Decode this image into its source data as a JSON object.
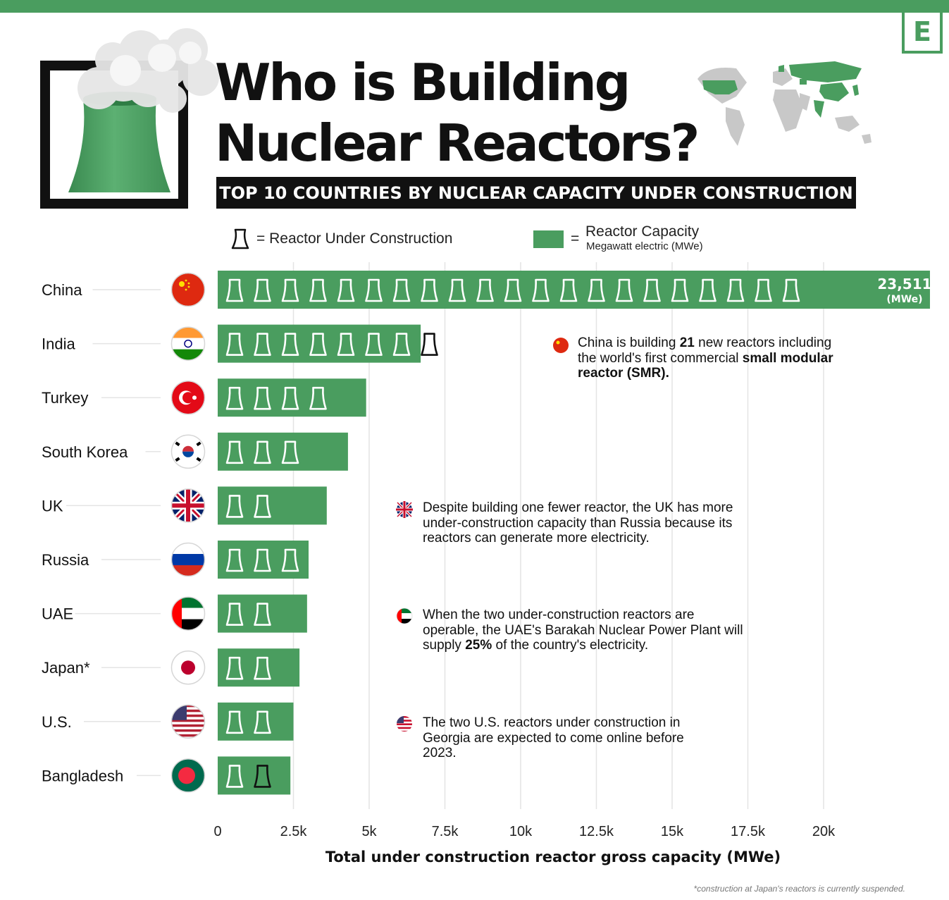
{
  "header": {
    "title_line1": "Who is Building",
    "title_line2": "Nuclear Reactors?",
    "subtitle": "TOP 10 COUNTRIES BY NUCLEAR CAPACITY UNDER CONSTRUCTION",
    "logo_letter": "E"
  },
  "legend": {
    "reactor_label": "= Reactor Under Construction",
    "capacity_eq": "=",
    "capacity_label": "Reactor Capacity",
    "capacity_sublabel": "Megawatt electric (MWe)"
  },
  "chart_data": {
    "type": "bar",
    "orientation": "horizontal",
    "categories": [
      "China",
      "India",
      "Turkey",
      "South Korea",
      "UK",
      "Russia",
      "UAE",
      "Japan*",
      "U.S.",
      "Bangladesh"
    ],
    "values": [
      23511,
      6700,
      4900,
      4300,
      3600,
      3000,
      2950,
      2700,
      2500,
      2400
    ],
    "reactors_under_construction": [
      21,
      8,
      4,
      3,
      2,
      3,
      2,
      2,
      2,
      2
    ],
    "reactor_icons_outside_bar": [
      0,
      1,
      0,
      0,
      0,
      0,
      0,
      0,
      0,
      1
    ],
    "value_labels": [
      {
        "category": "China",
        "value": "23,511",
        "unit": "(MWe)"
      }
    ],
    "x_ticks": [
      "0",
      "2.5k",
      "5k",
      "7.5k",
      "10k",
      "12.5k",
      "15k",
      "17.5k",
      "20k"
    ],
    "x_tick_values": [
      0,
      2500,
      5000,
      7500,
      10000,
      12500,
      15000,
      17500,
      20000
    ],
    "xlim": [
      0,
      22500
    ],
    "xlabel": "Total under construction reactor gross capacity (MWe)",
    "grid": true,
    "bar_color": "#4a9d5f"
  },
  "notes": {
    "china": {
      "pre": "China is building ",
      "bold": "21",
      "mid": " new reactors including the world's first commercial ",
      "bold2": "small modular reactor (SMR)."
    },
    "uk": {
      "text": "Despite building one fewer reactor, the UK has more under-construction capacity than Russia because its reactors can generate more electricity."
    },
    "uae": {
      "pre": "When the two under-construction reactors are operable, the UAE's Barakah Nuclear Power Plant will supply ",
      "bold": "25%",
      "post": " of the country's electricity."
    },
    "us": {
      "text": "The two U.S. reactors under construction in Georgia are expected to come online before 2023."
    }
  },
  "footnote": "*construction at Japan's reactors is currently suspended.",
  "colors": {
    "green": "#4a9d5f",
    "dark": "#111111"
  }
}
